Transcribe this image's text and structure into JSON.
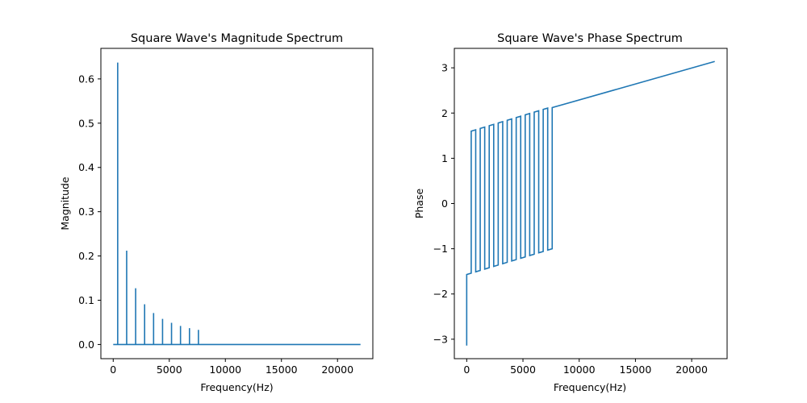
{
  "colors": {
    "series": "#1f77b4",
    "axes": "#000000",
    "background": "#ffffff"
  },
  "chart_data": [
    {
      "type": "line",
      "title": "Square Wave's Magnitude Spectrum",
      "xlabel": "Frequency(Hz)",
      "ylabel": "Magnitude",
      "xlim": [
        -1100,
        23150
      ],
      "ylim": [
        -0.032,
        0.669
      ],
      "xticks": [
        0,
        5000,
        10000,
        15000,
        20000
      ],
      "xtick_labels": [
        "0",
        "5000",
        "10000",
        "15000",
        "20000"
      ],
      "yticks": [
        0.0,
        0.1,
        0.2,
        0.3,
        0.4,
        0.5,
        0.6
      ],
      "ytick_labels": [
        "0.0",
        "0.1",
        "0.2",
        "0.3",
        "0.4",
        "0.5",
        "0.6"
      ],
      "grid": false,
      "series": [
        {
          "x": [
            0,
            400,
            400,
            400,
            1200,
            1200,
            1200,
            2000,
            2000,
            2000,
            2800,
            2800,
            2800,
            3600,
            3600,
            3600,
            4400,
            4400,
            4400,
            5200,
            5200,
            5200,
            6000,
            6000,
            6000,
            6800,
            6800,
            6800,
            7600,
            7600,
            7600,
            22050
          ],
          "y": [
            0,
            0,
            0.637,
            0,
            0,
            0.212,
            0,
            0,
            0.127,
            0,
            0,
            0.091,
            0,
            0,
            0.071,
            0,
            0,
            0.058,
            0,
            0,
            0.049,
            0,
            0,
            0.042,
            0,
            0,
            0.037,
            0,
            0,
            0.033,
            0,
            0
          ]
        }
      ]
    },
    {
      "type": "line",
      "title": "Square Wave's Phase Spectrum",
      "xlabel": "Frequency(Hz)",
      "ylabel": "Phase",
      "xlim": [
        -1100,
        23150
      ],
      "ylim": [
        -3.43,
        3.43
      ],
      "xticks": [
        0,
        5000,
        10000,
        15000,
        20000
      ],
      "xtick_labels": [
        "0",
        "5000",
        "10000",
        "15000",
        "20000"
      ],
      "yticks": [
        -3,
        -2,
        -1,
        0,
        1,
        2,
        3
      ],
      "ytick_labels": [
        "−3",
        "−2",
        "−1",
        "0",
        "1",
        "2",
        "3"
      ],
      "grid": false,
      "series": [
        {
          "x": [
            0,
            0,
            400,
            400,
            800,
            800,
            1200,
            1200,
            1600,
            1600,
            2000,
            2000,
            2400,
            2400,
            2800,
            2800,
            3200,
            3200,
            3600,
            3600,
            4000,
            4000,
            4400,
            4400,
            4800,
            4800,
            5200,
            5200,
            5600,
            5600,
            6000,
            6000,
            6400,
            6400,
            6800,
            6800,
            7200,
            7200,
            7600,
            7600,
            22050
          ],
          "y": [
            -3.14,
            -1.57,
            -1.54,
            1.6,
            1.63,
            -1.51,
            -1.48,
            1.66,
            1.69,
            -1.45,
            -1.42,
            1.72,
            1.75,
            -1.39,
            -1.36,
            1.78,
            1.81,
            -1.33,
            -1.3,
            1.84,
            1.87,
            -1.27,
            -1.24,
            1.9,
            1.93,
            -1.21,
            -1.18,
            1.96,
            1.99,
            -1.15,
            -1.12,
            2.02,
            2.05,
            -1.09,
            -1.06,
            2.08,
            2.11,
            -1.03,
            -1.0,
            2.12,
            3.14
          ]
        }
      ]
    }
  ]
}
